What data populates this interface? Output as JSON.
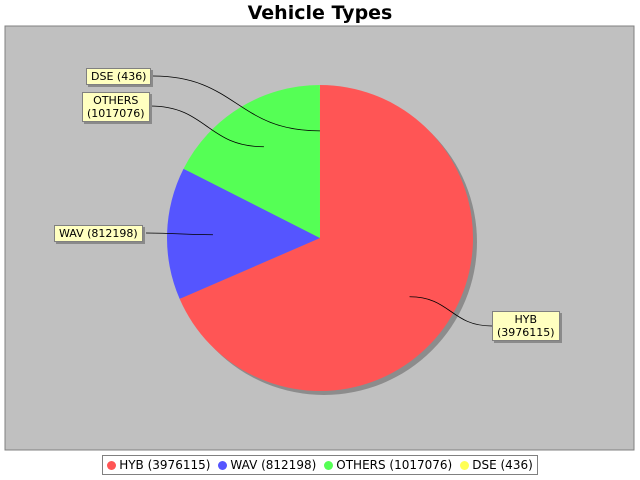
{
  "chart_data": {
    "type": "pie",
    "title": "Vehicle Types",
    "slices": [
      {
        "label": "HYB",
        "value": 3976115,
        "color": "#ff5555"
      },
      {
        "label": "WAV",
        "value": 812198,
        "color": "#5555ff"
      },
      {
        "label": "OTHERS",
        "value": 1017076,
        "color": "#55ff55"
      },
      {
        "label": "DSE",
        "value": 436,
        "color": "#ffff55"
      }
    ],
    "callouts": [
      {
        "line1": "DSE (436)",
        "line2": ""
      },
      {
        "line1": "OTHERS",
        "line2": "(1017076)"
      },
      {
        "line1": "WAV (812198)",
        "line2": ""
      },
      {
        "line1": "HYB",
        "line2": "(3976115)"
      }
    ],
    "legend": [
      "HYB (3976115)",
      "WAV (812198)",
      "OTHERS (1017076)",
      "DSE (436)"
    ],
    "legend_position": "bottom",
    "plot_background": "#c0c0c0"
  }
}
